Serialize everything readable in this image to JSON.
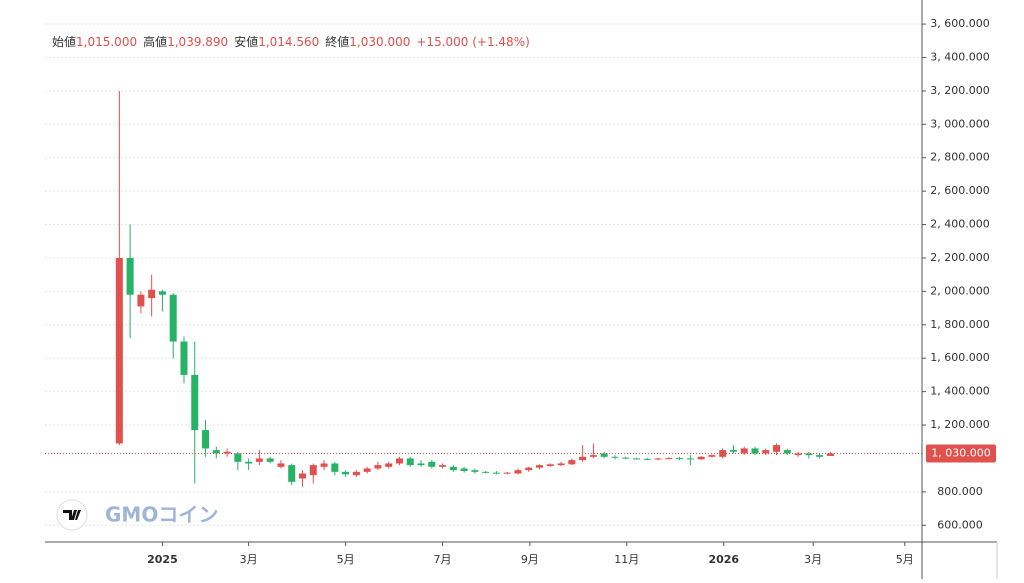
{
  "chart_data": {
    "type": "candlestick",
    "ohlc_legend": [
      {
        "label": "始値",
        "value": "1,015.000"
      },
      {
        "label": "高値",
        "value": "1,039.890"
      },
      {
        "label": "安値",
        "value": "1,014.560"
      },
      {
        "label": "終値",
        "value": "1,030.000"
      }
    ],
    "change": "+15.000 (+1.48%)",
    "logo": "GMOコイン",
    "up_color": "#e0504d",
    "down_color": "#26b367",
    "grid": true,
    "ylim": [
      500,
      3744
    ],
    "yticks": [
      {
        "value": 600,
        "label": "600.000"
      },
      {
        "value": 800,
        "label": "800.000"
      },
      {
        "value": 1200,
        "label": "1, 200.000"
      },
      {
        "value": 1400,
        "label": "1, 400.000"
      },
      {
        "value": 1600,
        "label": "1, 600.000"
      },
      {
        "value": 1800,
        "label": "1, 800.000"
      },
      {
        "value": 2000,
        "label": "2, 000.000"
      },
      {
        "value": 2200,
        "label": "2, 200.000"
      },
      {
        "value": 2400,
        "label": "2, 400.000"
      },
      {
        "value": 2600,
        "label": "2, 600.000"
      },
      {
        "value": 2800,
        "label": "2, 800.000"
      },
      {
        "value": 3000,
        "label": "3, 000.000"
      },
      {
        "value": 3200,
        "label": "3, 200.000"
      },
      {
        "value": 3400,
        "label": "3, 400.000"
      },
      {
        "value": 3600,
        "label": "3, 600.000"
      }
    ],
    "xlim": [
      -6.9,
      74.5
    ],
    "xticks": [
      {
        "value": 4.0,
        "label": "2025"
      },
      {
        "value": 12.0,
        "label": "3月"
      },
      {
        "value": 21.0,
        "label": "5月"
      },
      {
        "value": 30.0,
        "label": "7月"
      },
      {
        "value": 38.1,
        "label": "9月"
      },
      {
        "value": 47.1,
        "label": "11月"
      },
      {
        "value": 56.1,
        "label": "2026"
      },
      {
        "value": 64.4,
        "label": "3月"
      },
      {
        "value": 72.9,
        "label": "5月"
      }
    ],
    "last_price": {
      "value": 1030,
      "label": "1, 030.000"
    },
    "open": [
      1090,
      2200,
      1910,
      1960,
      2000,
      1980,
      1700,
      1500,
      1170,
      1050,
      1030,
      1030,
      980,
      980,
      1000,
      950,
      960,
      880,
      900,
      950,
      970,
      920,
      900,
      920,
      940,
      950,
      970,
      1000,
      970,
      980,
      950,
      950,
      940,
      930,
      920,
      915,
      910,
      910,
      930,
      945,
      955,
      960,
      965,
      990,
      1010,
      1030,
      1010,
      1005,
      1000,
      998,
      996,
      1000,
      1002,
      1000,
      995,
      1010,
      1010,
      1050,
      1030,
      1060,
      1030,
      1040,
      1050,
      1020,
      1030,
      1020,
      1015
    ],
    "high": [
      3200,
      2400,
      2000,
      2100,
      2010,
      1990,
      1730,
      1700,
      1230,
      1070,
      1060,
      1040,
      1000,
      1050,
      1010,
      990,
      970,
      930,
      970,
      990,
      980,
      930,
      930,
      950,
      980,
      980,
      1010,
      1010,
      990,
      990,
      970,
      960,
      950,
      940,
      925,
      925,
      920,
      940,
      950,
      965,
      970,
      980,
      1000,
      1080,
      1090,
      1040,
      1020,
      1010,
      1005,
      1003,
      1005,
      1008,
      1010,
      1020,
      1015,
      1025,
      1060,
      1080,
      1070,
      1070,
      1060,
      1090,
      1060,
      1040,
      1040,
      1030,
      1040
    ],
    "low": [
      1080,
      1720,
      1870,
      1850,
      1880,
      1600,
      1450,
      850,
      1010,
      1000,
      1010,
      930,
      930,
      960,
      970,
      940,
      840,
      830,
      850,
      930,
      900,
      890,
      890,
      910,
      930,
      940,
      960,
      950,
      950,
      940,
      940,
      920,
      915,
      910,
      910,
      905,
      905,
      905,
      920,
      935,
      950,
      955,
      960,
      980,
      1000,
      1000,
      995,
      995,
      995,
      990,
      990,
      995,
      990,
      960,
      990,
      1005,
      1000,
      1030,
      1020,
      1020,
      1020,
      1020,
      1020,
      1010,
      1000,
      1000,
      1015
    ],
    "close": [
      2200,
      1980,
      1980,
      2010,
      1980,
      1700,
      1500,
      1170,
      1060,
      1030,
      1040,
      980,
      970,
      1000,
      980,
      970,
      860,
      910,
      960,
      970,
      920,
      905,
      920,
      940,
      960,
      970,
      1000,
      960,
      960,
      950,
      960,
      930,
      925,
      920,
      915,
      910,
      915,
      930,
      945,
      960,
      965,
      970,
      990,
      1010,
      1020,
      1010,
      1005,
      1000,
      998,
      996,
      1000,
      1002,
      998,
      995,
      1010,
      1020,
      1050,
      1040,
      1060,
      1030,
      1050,
      1080,
      1030,
      1030,
      1020,
      1010,
      1030
    ]
  }
}
